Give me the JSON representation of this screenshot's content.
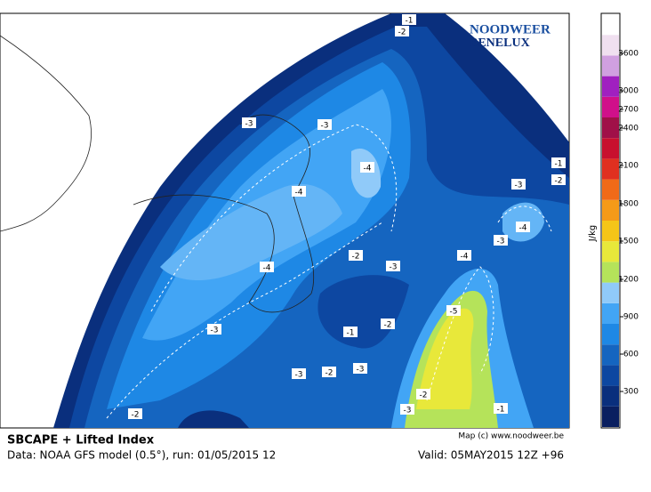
{
  "header": {
    "title": "SBCAPE + Lifted Index",
    "data_line": "Data: NOAA GFS model (0.5°), run: 01/05/2015 12",
    "valid_line": "Valid: 05MAY2015 12Z +96",
    "credit": "Map (c) www.noodweer.be"
  },
  "logo": {
    "line1": "NOODWEER",
    "line2": "BENELUX"
  },
  "colorbar": {
    "label": "J/kg",
    "ticks": [
      300,
      600,
      900,
      1200,
      1500,
      1800,
      2100,
      2400,
      2700,
      3000,
      3600
    ]
  },
  "contour_labels": [
    "-1",
    "-2",
    "-3",
    "-3",
    "-4",
    "-4",
    "-1",
    "-3",
    "-2",
    "-4",
    "-3",
    "-2",
    "-3",
    "-4",
    "-4",
    "-5",
    "-2",
    "-1",
    "-3",
    "-3",
    "-2",
    "-3",
    "-2",
    "-3",
    "-1",
    "-2"
  ]
}
